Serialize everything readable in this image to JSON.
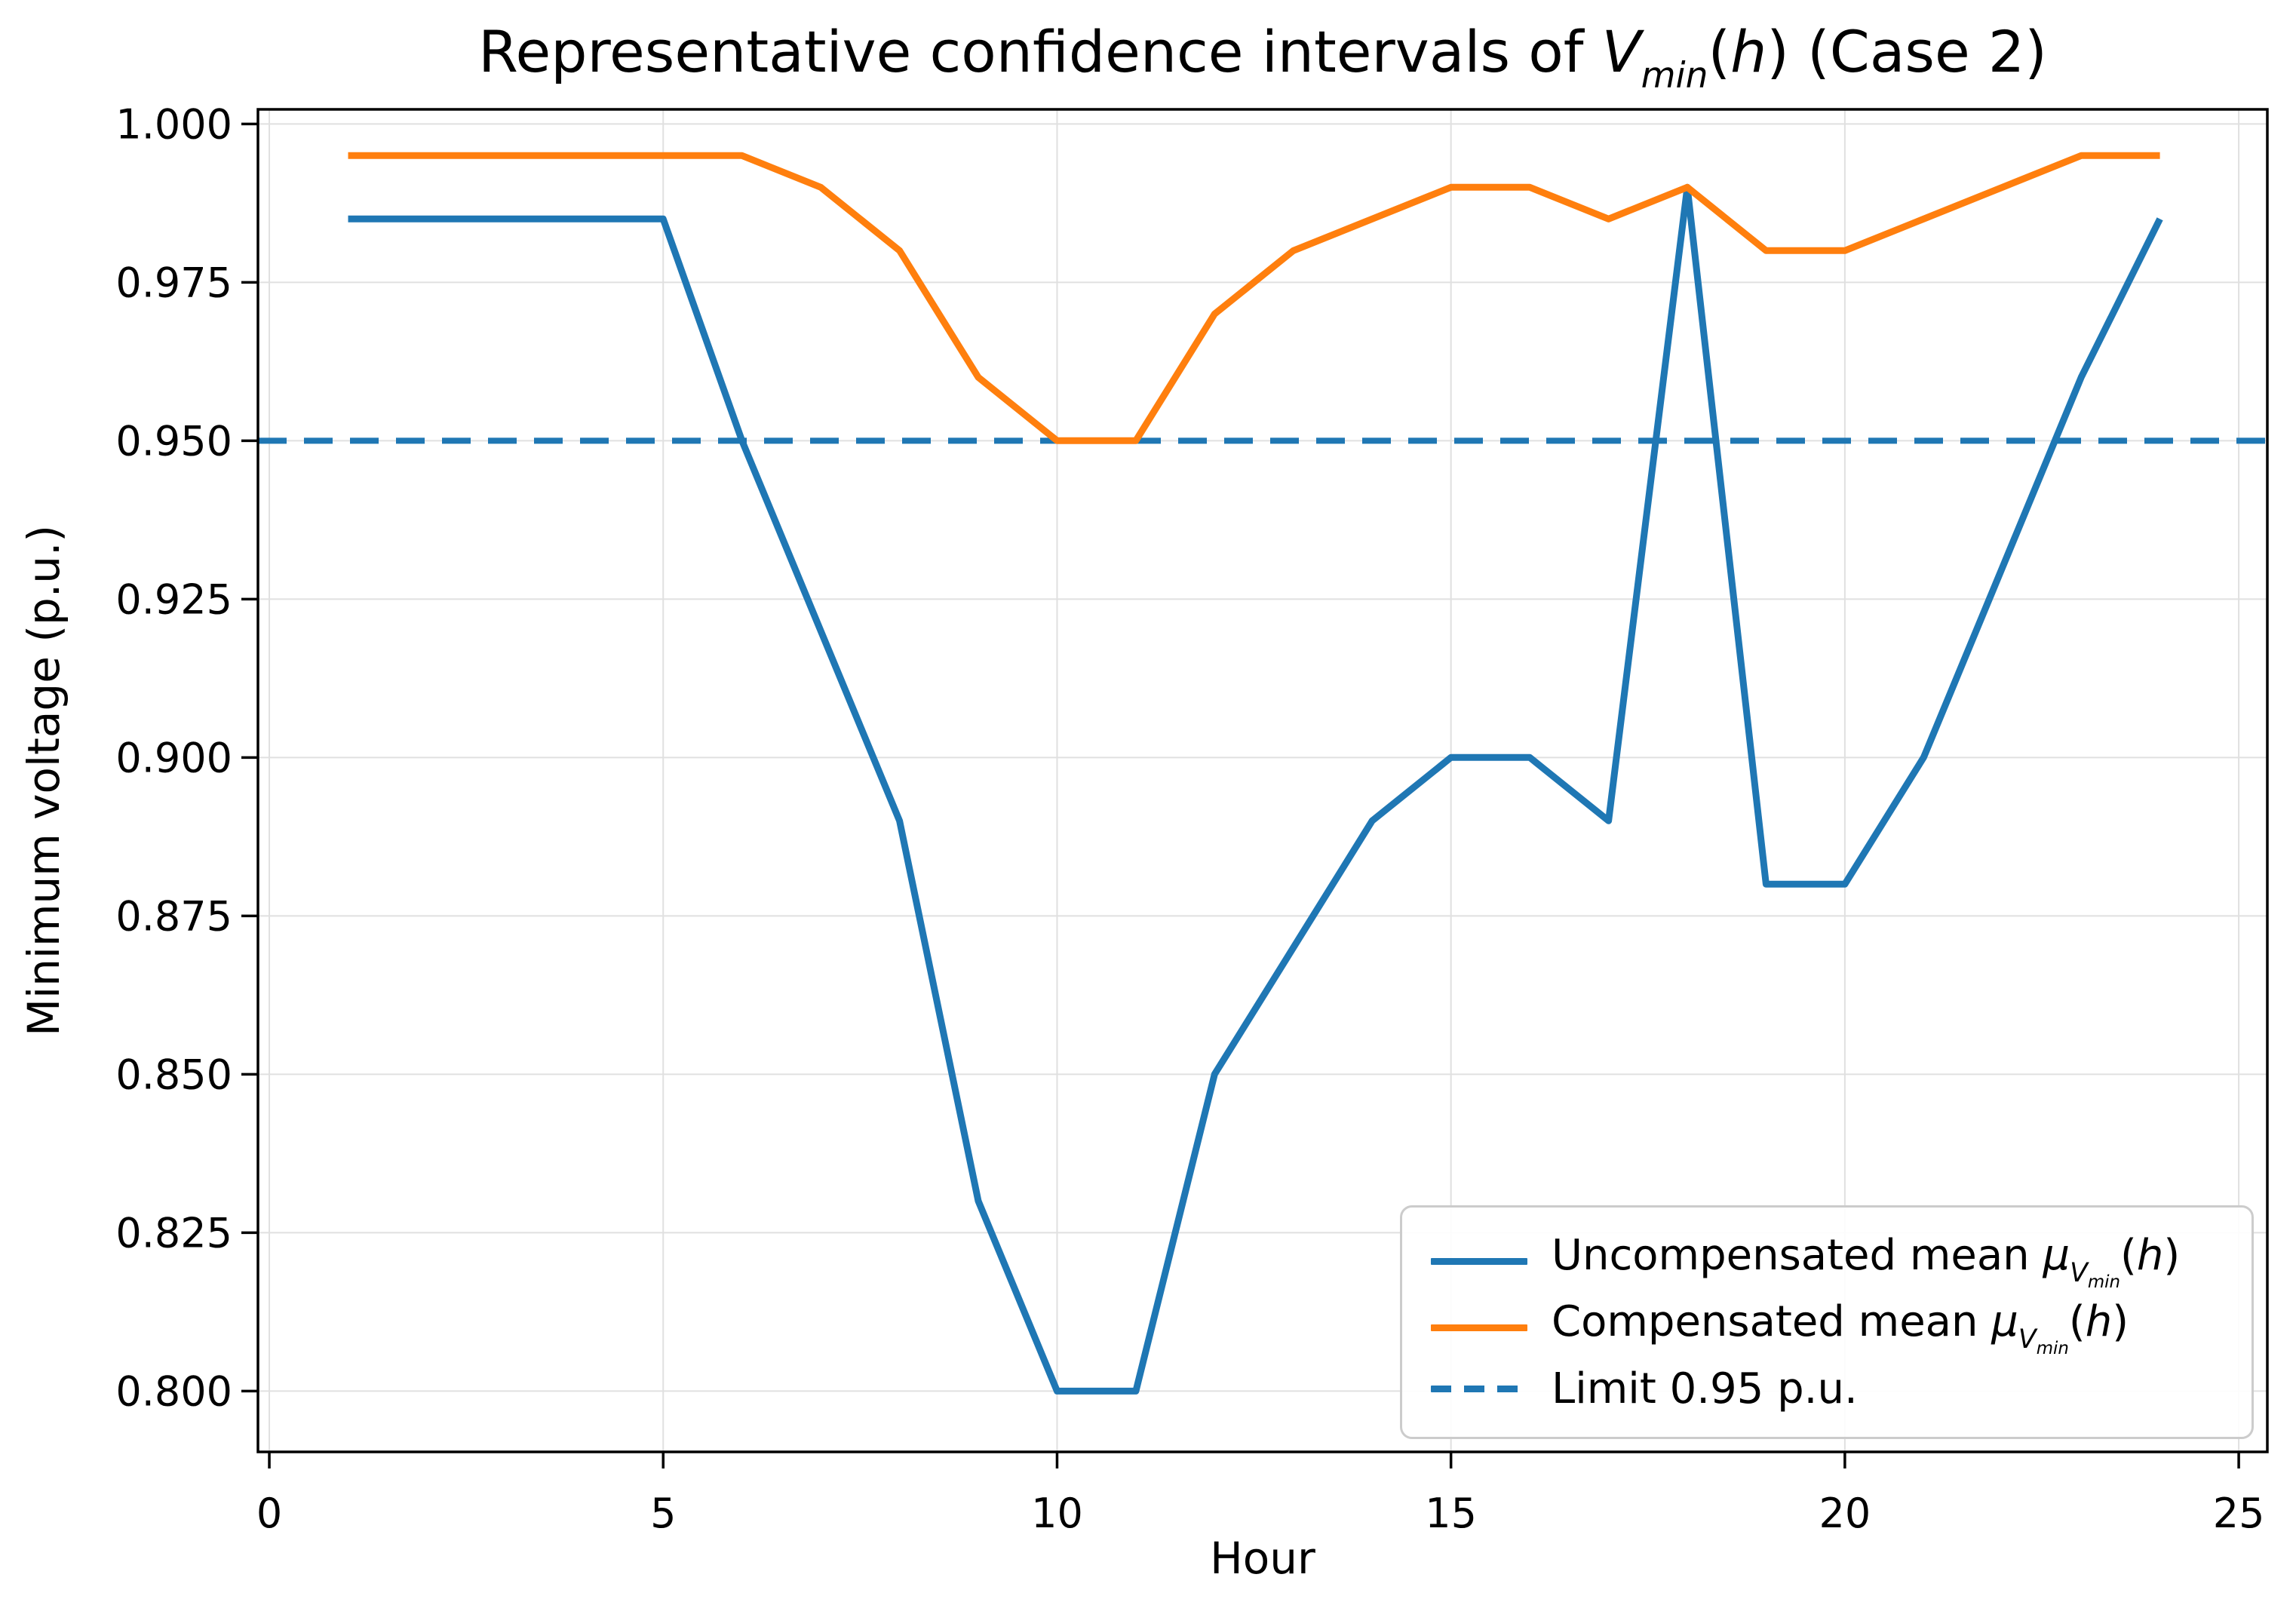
{
  "title": {
    "prefix": "Representative confidence intervals of ",
    "v": "V",
    "vsub": "min",
    "open": "(",
    "h": "h",
    "close": ")",
    "suffix": " (Case 2)"
  },
  "x_axis": {
    "label": "Hour"
  },
  "y_axis": {
    "label": "Minimum voltage (p.u.)"
  },
  "legend": {
    "position": "lower right",
    "items": [
      {
        "prefix": "Uncompensated mean ",
        "mu": "μ",
        "v": "V",
        "vsub": "min",
        "open": "(",
        "h": "h",
        "close": ")",
        "color": "#1f77b4",
        "style": "solid"
      },
      {
        "prefix": "Compensated mean ",
        "mu": "μ",
        "v": "V",
        "vsub": "min",
        "open": "(",
        "h": "h",
        "close": ")",
        "color": "#ff7f0e",
        "style": "solid"
      },
      {
        "label": "Limit 0.95 p.u.",
        "color": "#1f77b4",
        "style": "dashed"
      }
    ]
  },
  "colors": {
    "uncompensated": "#1f77b4",
    "compensated": "#ff7f0e",
    "limit": "#1f77b4",
    "grid": "#e0e0e0",
    "spine": "#000000"
  },
  "chart_data": {
    "type": "line",
    "title": "Representative confidence intervals of V_min(h) (Case 2)",
    "xlabel": "Hour",
    "ylabel": "Minimum voltage (p.u.)",
    "x": [
      1,
      2,
      3,
      4,
      5,
      6,
      7,
      8,
      9,
      10,
      11,
      12,
      13,
      14,
      15,
      16,
      17,
      18,
      19,
      20,
      21,
      22,
      23,
      24
    ],
    "series": [
      {
        "name": "Uncompensated mean μ_Vmin(h)",
        "color": "#1f77b4",
        "values": [
          0.985,
          0.985,
          0.985,
          0.985,
          0.985,
          0.95,
          0.92,
          0.89,
          0.83,
          0.8,
          0.8,
          0.85,
          0.87,
          0.89,
          0.9,
          0.9,
          0.89,
          0.99,
          0.88,
          0.88,
          0.9,
          0.93,
          0.96,
          0.985
        ]
      },
      {
        "name": "Compensated mean μ_Vmin(h)",
        "color": "#ff7f0e",
        "values": [
          0.995,
          0.995,
          0.995,
          0.995,
          0.995,
          0.995,
          0.99,
          0.98,
          0.96,
          0.95,
          0.95,
          0.97,
          0.98,
          0.985,
          0.99,
          0.99,
          0.985,
          0.99,
          0.98,
          0.98,
          0.985,
          0.99,
          0.995,
          0.995
        ]
      }
    ],
    "limit": {
      "label": "Limit 0.95 p.u.",
      "value": 0.95,
      "color": "#1f77b4",
      "style": "dashed"
    },
    "x_ticks": [
      0,
      5,
      10,
      15,
      20,
      25
    ],
    "y_ticks": [
      0.8,
      0.825,
      0.85,
      0.875,
      0.9,
      0.925,
      0.95,
      0.975,
      1.0
    ],
    "x_range": [
      -0.144,
      25.363
    ],
    "y_range": [
      0.7904,
      1.0023
    ],
    "grid": true,
    "legend_position": "lower right"
  }
}
